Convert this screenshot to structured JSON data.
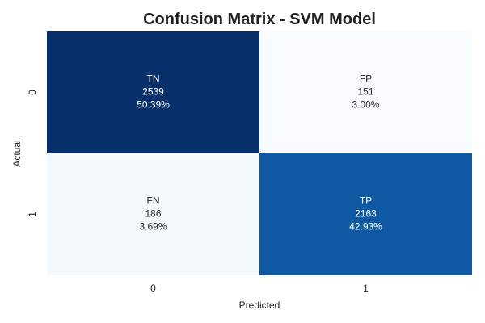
{
  "chart_data": {
    "type": "heatmap",
    "title": "Confusion Matrix - SVM Model",
    "xlabel": "Predicted",
    "ylabel": "Actual",
    "x_categories": [
      "0",
      "1"
    ],
    "y_categories": [
      "0",
      "1"
    ],
    "colormap": "Blues",
    "colorbar": false,
    "grid": false,
    "cells": [
      {
        "row": 0,
        "col": 0,
        "label": "TN",
        "count": "2539",
        "percent": "50.39%",
        "value": 2539
      },
      {
        "row": 0,
        "col": 1,
        "label": "FP",
        "count": "151",
        "percent": "3.00%",
        "value": 151
      },
      {
        "row": 1,
        "col": 0,
        "label": "FN",
        "count": "186",
        "percent": "3.69%",
        "value": 186
      },
      {
        "row": 1,
        "col": 1,
        "label": "TP",
        "count": "2163",
        "percent": "42.93%",
        "value": 2163
      }
    ]
  }
}
